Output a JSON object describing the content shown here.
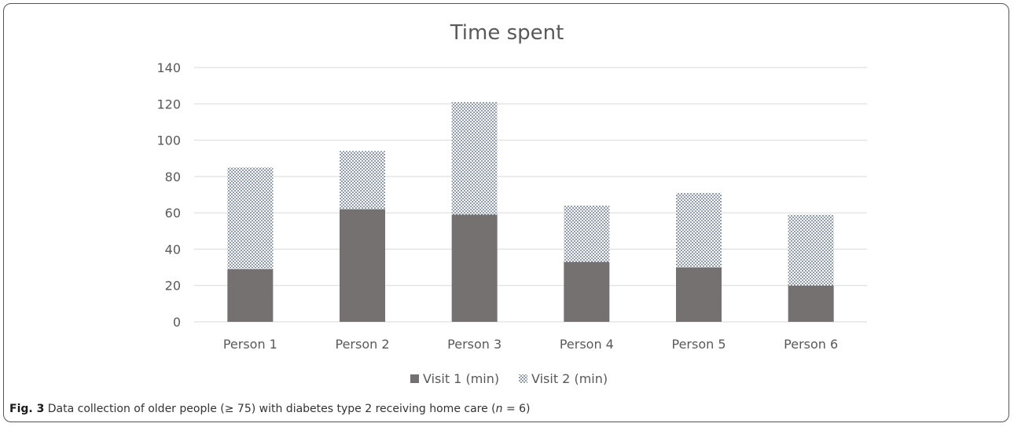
{
  "caption": {
    "label": "Fig. 3",
    "text_before_n": " Data collection of older people (≥ 75) with diabetes type 2 receiving home care (",
    "n_symbol": "n",
    "text_after_n": " = 6)"
  },
  "colors": {
    "visit1": "#767171",
    "visit2_dot": "#3f5570",
    "grid": "#d9d9d9",
    "text": "#595959"
  },
  "chart_data": {
    "type": "bar",
    "stacked": true,
    "title": "Time spent",
    "xlabel": "",
    "ylabel": "",
    "categories": [
      "Person 1",
      "Person 2",
      "Person 3",
      "Person 4",
      "Person 5",
      "Person 6"
    ],
    "series": [
      {
        "name": "Visit 1 (min)",
        "values": [
          29,
          62,
          59,
          33,
          30,
          20
        ]
      },
      {
        "name": "Visit 2 (min)",
        "values": [
          56,
          32,
          62,
          31,
          41,
          39
        ]
      }
    ],
    "ylim": [
      0,
      140
    ],
    "yticks": [
      "0",
      "20",
      "40",
      "60",
      "80",
      "100",
      "120",
      "140"
    ],
    "grid": true,
    "legend": "bottom"
  }
}
